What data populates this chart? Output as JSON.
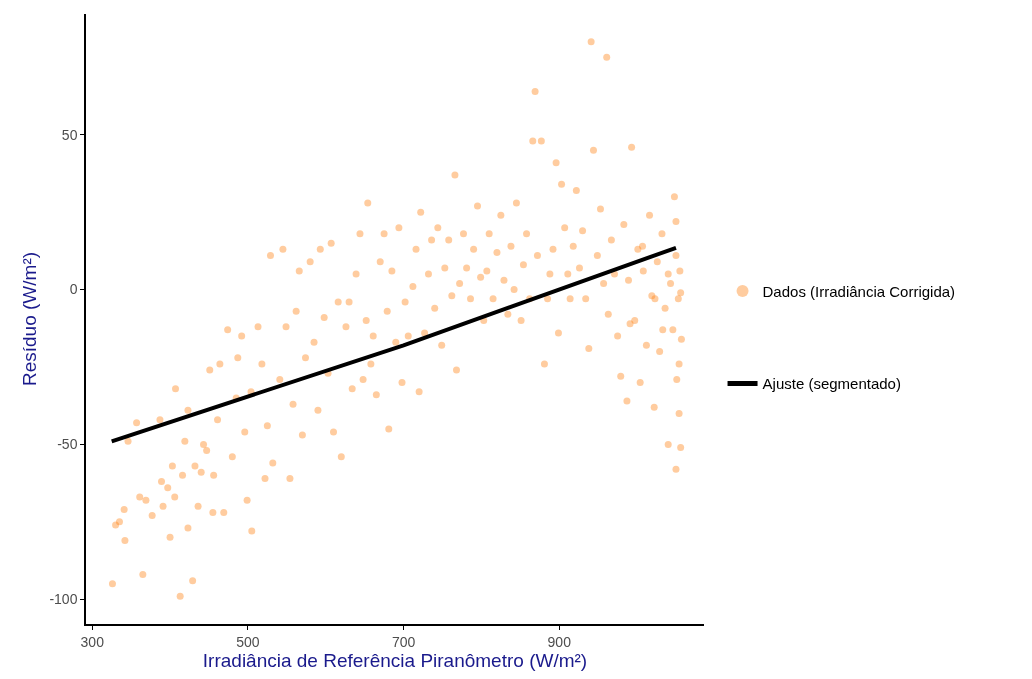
{
  "chart_data": {
    "type": "scatter",
    "xlabel": "Irradiância de Referência Piranômetro (W/m²)",
    "ylabel": "Resíduo (W/m²)",
    "xlim": [
      292,
      1086
    ],
    "xticks": [
      300,
      500,
      700,
      900
    ],
    "ylim": [
      -108,
      89
    ],
    "yticks": [
      -100,
      -50,
      0,
      50
    ],
    "legend": "right",
    "series": [
      {
        "name": "Dados (Irradiância Corrigida)",
        "marker": "circle",
        "color": "#ff7f0e",
        "x": [
          326,
          330,
          335,
          342,
          341,
          357,
          346,
          361,
          369,
          365,
          377,
          387,
          389,
          391,
          400,
          397,
          403,
          406,
          407,
          413,
          416,
          419,
          423,
          423,
          429,
          432,
          436,
          440,
          443,
          447,
          451,
          456,
          455,
          461,
          464,
          469,
          474,
          480,
          485,
          487,
          492,
          496,
          499,
          505,
          504,
          513,
          518,
          522,
          525,
          529,
          532,
          541,
          545,
          549,
          554,
          558,
          562,
          566,
          570,
          574,
          580,
          585,
          590,
          593,
          598,
          603,
          607,
          610,
          616,
          620,
          626,
          630,
          634,
          639,
          644,
          648,
          652,
          654,
          658,
          661,
          665,
          670,
          675,
          679,
          681,
          685,
          690,
          694,
          698,
          702,
          706,
          712,
          716,
          720,
          722,
          727,
          732,
          736,
          740,
          744,
          749,
          753,
          758,
          762,
          766,
          768,
          772,
          777,
          781,
          786,
          790,
          795,
          799,
          803,
          807,
          810,
          815,
          820,
          825,
          829,
          834,
          838,
          842,
          845,
          851,
          854,
          858,
          862,
          866,
          869,
          872,
          877,
          881,
          885,
          888,
          892,
          896,
          899,
          903,
          907,
          911,
          914,
          918,
          922,
          926,
          930,
          934,
          938,
          941,
          944,
          949,
          953,
          957,
          961,
          963,
          967,
          971,
          975,
          979,
          983,
          987,
          989,
          993,
          997,
          1001,
          1004,
          1008,
          1012,
          1016,
          1019,
          1022,
          1026,
          1029,
          1032,
          1036,
          1040,
          1043,
          1046,
          1048,
          1050,
          1050,
          1051,
          1053,
          1054,
          1055,
          1056,
          1057,
          1050,
          1054,
          1056,
          1040,
          1033,
          1023,
          1007,
          991
        ],
        "values": [
          -95,
          -76,
          -75,
          -81,
          -71,
          -43,
          -49,
          -67,
          -68,
          -92,
          -73,
          -42,
          -62,
          -70,
          -80,
          -64,
          -57,
          -67,
          -32,
          -99,
          -60,
          -49,
          -77,
          -39,
          -94,
          -57,
          -70,
          -59,
          -50,
          -52,
          -26,
          -60,
          -72,
          -42,
          -24,
          -72,
          -13,
          -54,
          -35,
          -22,
          -15,
          -46,
          -68,
          -78,
          -33,
          -12,
          -24,
          -61,
          -44,
          11,
          -56,
          -29,
          13,
          -12,
          -61,
          -37,
          -7,
          6,
          -47,
          -22,
          9,
          -17,
          -39,
          13,
          -9,
          -27,
          15,
          -46,
          -4,
          -54,
          -12,
          -4,
          -32,
          5,
          18,
          -29,
          -10,
          28,
          -24,
          -15,
          -34,
          9,
          18,
          -7,
          -45,
          6,
          -17,
          20,
          -30,
          -4,
          -15,
          1,
          13,
          -33,
          25,
          -14,
          5,
          16,
          -6,
          20,
          -18,
          7,
          16,
          -2,
          37,
          -26,
          2,
          18,
          7,
          -3,
          13,
          27,
          4,
          -10,
          6,
          18,
          -3,
          12,
          24,
          3,
          -8,
          14,
          0,
          28,
          -10,
          8,
          18,
          -3,
          48,
          64,
          11,
          48,
          -24,
          -3,
          5,
          13,
          41,
          -14,
          34,
          20,
          5,
          -3,
          14,
          32,
          7,
          19,
          -3,
          -19,
          80,
          45,
          11,
          26,
          2,
          75,
          -8,
          16,
          5,
          -15,
          -28,
          21,
          -36,
          3,
          46,
          -10,
          13,
          -30,
          6,
          -18,
          24,
          -2,
          -38,
          9,
          -20,
          18,
          -6,
          -50,
          2,
          -13,
          30,
          -58,
          11,
          -29,
          -3,
          -40,
          6,
          -51,
          -16,
          22,
          -24,
          -1,
          5,
          -13,
          -3,
          14,
          -11
        ]
      },
      {
        "name": "Ajuste (segmentado)",
        "type": "line",
        "marker": "none",
        "color": "#000000",
        "x": [
          325,
          700,
          1050
        ],
        "values": [
          -49,
          -18,
          13.5
        ]
      }
    ]
  }
}
